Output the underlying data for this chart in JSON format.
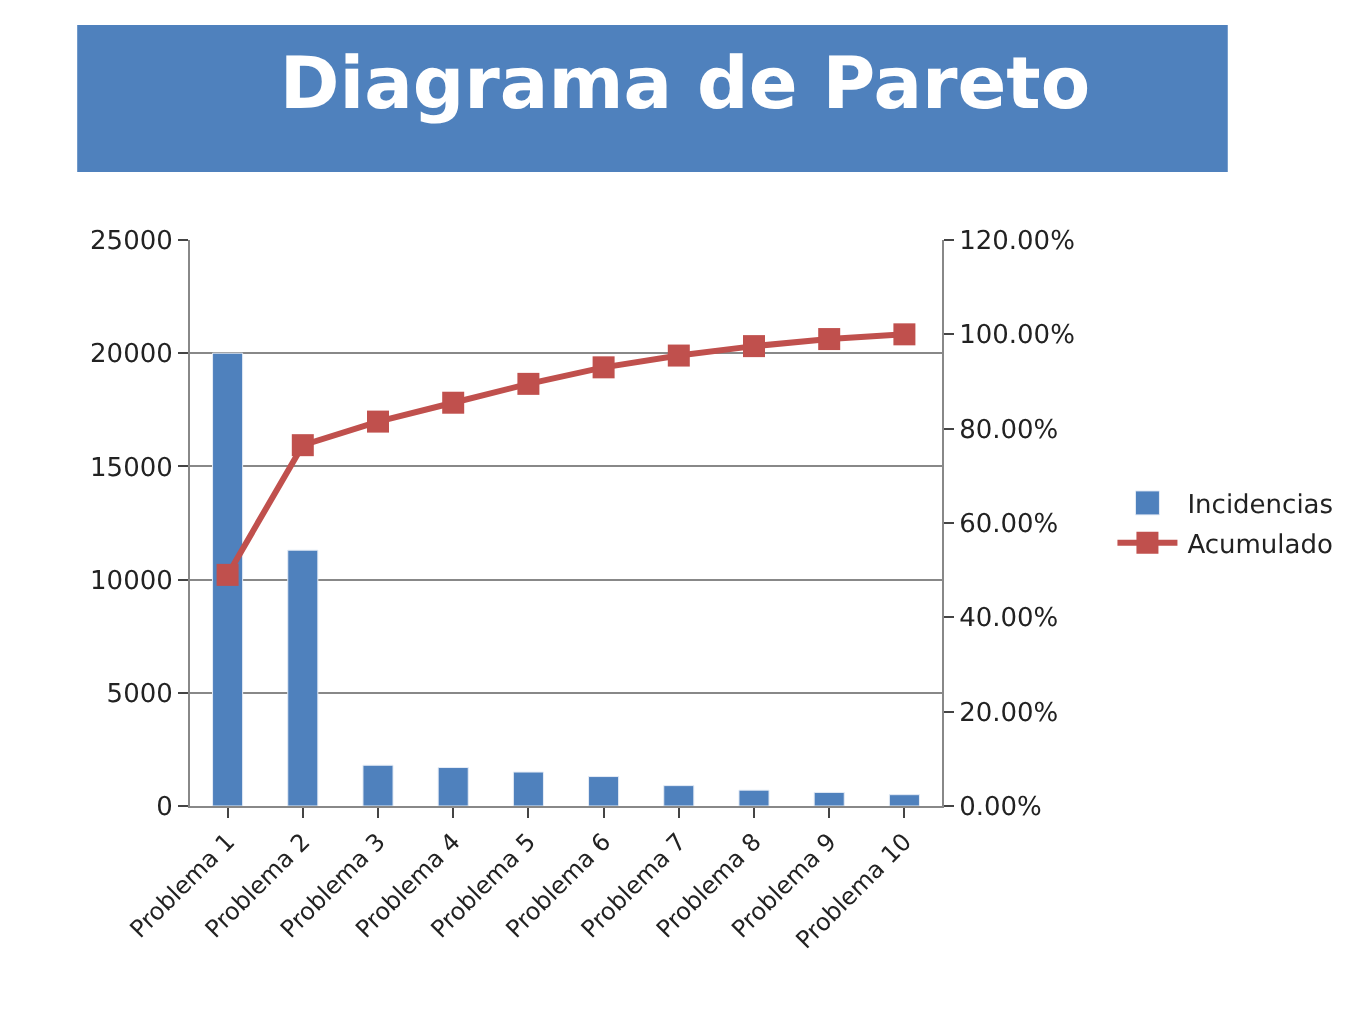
{
  "chart_data": {
    "type": "bar",
    "title": "Diagrama de Pareto",
    "categories": [
      "Problema 1",
      "Problema 2",
      "Problema 3",
      "Problema 4",
      "Problema 5",
      "Problema 6",
      "Problema 7",
      "Problema 8",
      "Problema 9",
      "Problema 10"
    ],
    "series": [
      {
        "name": "Incidencias",
        "color": "#4f81bd",
        "values": [
          20000,
          11300,
          1800,
          1700,
          1500,
          1300,
          900,
          700,
          600,
          500
        ]
      },
      {
        "name": "Acumulado",
        "type": "line",
        "axis": "y2",
        "color": "#c0504d",
        "marker": "square",
        "values": [
          49,
          76.5,
          81.5,
          85.5,
          89.5,
          93,
          95.5,
          97.5,
          99,
          100
        ]
      }
    ],
    "ylim": [
      0,
      25000
    ],
    "yticks": [
      0,
      5000,
      10000,
      15000,
      20000,
      25000
    ],
    "y2lim": [
      0,
      120
    ],
    "y2ticks": [
      {
        "value": 0,
        "label": "0.00%"
      },
      {
        "value": 20,
        "label": "20.00%"
      },
      {
        "value": 40,
        "label": "40.00%"
      },
      {
        "value": 60,
        "label": "60.00%"
      },
      {
        "value": 80,
        "label": "80.00%"
      },
      {
        "value": 100,
        "label": "100.00%"
      },
      {
        "value": 120,
        "label": "120.00%"
      }
    ],
    "grid": "y",
    "legend": "right"
  }
}
